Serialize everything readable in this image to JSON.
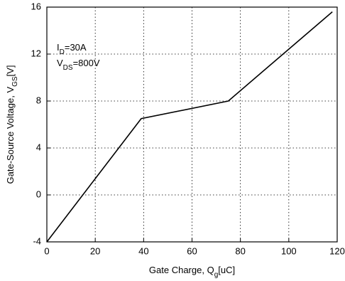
{
  "chart_data": {
    "type": "line",
    "x_label": {
      "text": "Gate Charge, Q",
      "sub": "g",
      "tail": "[uC]"
    },
    "y_label": {
      "text": "Gate-Source Voltage, V",
      "sub": "GS",
      "tail": "[V]"
    },
    "annotations": [
      {
        "text": "I",
        "sub": "D",
        "tail": "=30A"
      },
      {
        "text": "V",
        "sub": "DS",
        "tail": "=800V"
      }
    ],
    "x": [
      0,
      39,
      75,
      118
    ],
    "series": [
      {
        "color": "#000000",
        "values": [
          -4,
          6.5,
          8,
          15.6
        ]
      }
    ],
    "xlim": [
      0,
      120
    ],
    "xticks": [
      0,
      20,
      40,
      60,
      80,
      100,
      120
    ],
    "ylim": [
      -4,
      16
    ],
    "yticks": [
      -4,
      0,
      4,
      8,
      12,
      16
    ],
    "grid": true
  }
}
